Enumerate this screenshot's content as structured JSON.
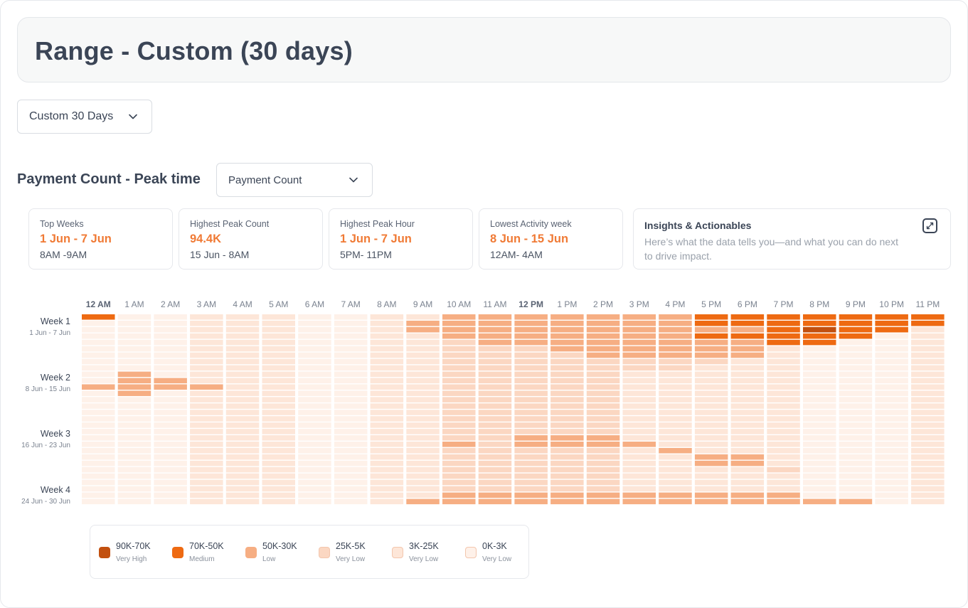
{
  "header": {
    "title": "Range - Custom (30 days)"
  },
  "range_dropdown": {
    "value": "Custom 30 Days",
    "icon": "chevron-down-icon"
  },
  "section": {
    "title": "Payment Count - Peak time"
  },
  "metric_dropdown": {
    "value": "Payment Count",
    "icon": "chevron-down-icon"
  },
  "stats": [
    {
      "label": "Top Weeks",
      "value": "1 Jun - 7 Jun",
      "sub": "8AM -9AM"
    },
    {
      "label": "Highest Peak Count",
      "value": "94.4K",
      "sub": "15 Jun - 8AM"
    },
    {
      "label": "Highest Peak Hour",
      "value": "1 Jun - 7 Jun",
      "sub": "5PM- 11PM"
    },
    {
      "label": "Lowest Activity week",
      "value": "8 Jun - 15 Jun",
      "sub": "12AM- 4AM"
    }
  ],
  "insights": {
    "title": "Insights & Actionables",
    "description": "Here’s what the data tells you—and what you can do next to drive impact.",
    "icon": "expand-icon"
  },
  "chart_data": {
    "type": "heatmap",
    "columns": [
      "12 AM",
      "1 AM",
      "2 AM",
      "3 AM",
      "4 AM",
      "5 AM",
      "6 AM",
      "7 AM",
      "8 AM",
      "9 AM",
      "10 AM",
      "11 AM",
      "12 PM",
      "1 PM",
      "2 PM",
      "3 PM",
      "4 PM",
      "5 PM",
      "6 PM",
      "7 PM",
      "8 PM",
      "9 PM",
      "10 PM",
      "11 PM"
    ],
    "bold_columns": [
      "12 AM",
      "12 PM"
    ],
    "rows": [
      {
        "name": "Week 1",
        "range": "1 Jun - 7 Jun"
      },
      {
        "name": "Week 2",
        "range": "8 Jun - 15 Jun"
      },
      {
        "name": "Week 3",
        "range": "16 Jun - 23 Jun"
      },
      {
        "name": "Week 4",
        "range": "24 Jun - 30 Jun"
      }
    ],
    "slices_per_column": 30,
    "levels_legend": [
      {
        "range": "90K-70K",
        "level": "Very High",
        "color": "#c2500f"
      },
      {
        "range": "70K-50K",
        "level": "Medium",
        "color": "#ee6a12"
      },
      {
        "range": "50K-30K",
        "level": "Low",
        "color": "#f6ae83"
      },
      {
        "range": "25K-5K",
        "level": "Very Low",
        "color": "#fbd7c2"
      },
      {
        "range": "3K-25K",
        "level": "Very Low",
        "color": "#fde6d8"
      },
      {
        "range": "0K-3K",
        "level": "Very Low",
        "color": "#fef1e9"
      }
    ],
    "base_level_per_column": [
      5,
      5,
      5,
      4,
      4,
      4,
      5,
      5,
      4,
      4,
      3,
      3,
      3,
      3,
      3,
      4,
      4,
      4,
      4,
      4,
      5,
      5,
      5,
      4
    ],
    "cell_overrides": [
      [
        0,
        0,
        1
      ],
      [
        0,
        10,
        2
      ],
      [
        0,
        11,
        2
      ],
      [
        0,
        12,
        2
      ],
      [
        0,
        13,
        2
      ],
      [
        0,
        14,
        2
      ],
      [
        0,
        15,
        2
      ],
      [
        0,
        16,
        2
      ],
      [
        0,
        17,
        1
      ],
      [
        0,
        18,
        1
      ],
      [
        0,
        19,
        1
      ],
      [
        0,
        20,
        1
      ],
      [
        0,
        21,
        1
      ],
      [
        0,
        22,
        1
      ],
      [
        0,
        23,
        1
      ],
      [
        1,
        9,
        2
      ],
      [
        1,
        10,
        2
      ],
      [
        1,
        11,
        2
      ],
      [
        1,
        12,
        2
      ],
      [
        1,
        13,
        2
      ],
      [
        1,
        14,
        2
      ],
      [
        1,
        15,
        2
      ],
      [
        1,
        16,
        2
      ],
      [
        1,
        17,
        1
      ],
      [
        1,
        18,
        1
      ],
      [
        1,
        19,
        1
      ],
      [
        1,
        20,
        1
      ],
      [
        1,
        21,
        1
      ],
      [
        1,
        22,
        1
      ],
      [
        1,
        23,
        1
      ],
      [
        2,
        9,
        2
      ],
      [
        2,
        10,
        2
      ],
      [
        2,
        11,
        2
      ],
      [
        2,
        12,
        2
      ],
      [
        2,
        13,
        2
      ],
      [
        2,
        14,
        2
      ],
      [
        2,
        15,
        2
      ],
      [
        2,
        16,
        2
      ],
      [
        2,
        17,
        2
      ],
      [
        2,
        18,
        2
      ],
      [
        2,
        19,
        1
      ],
      [
        2,
        20,
        0
      ],
      [
        2,
        21,
        1
      ],
      [
        2,
        22,
        1
      ],
      [
        3,
        10,
        2
      ],
      [
        3,
        11,
        2
      ],
      [
        3,
        12,
        2
      ],
      [
        3,
        13,
        2
      ],
      [
        3,
        14,
        2
      ],
      [
        3,
        15,
        2
      ],
      [
        3,
        16,
        2
      ],
      [
        3,
        17,
        1
      ],
      [
        3,
        18,
        1
      ],
      [
        3,
        19,
        1
      ],
      [
        3,
        20,
        1
      ],
      [
        3,
        21,
        1
      ],
      [
        4,
        11,
        2
      ],
      [
        4,
        12,
        2
      ],
      [
        4,
        13,
        2
      ],
      [
        4,
        14,
        2
      ],
      [
        4,
        15,
        2
      ],
      [
        4,
        16,
        2
      ],
      [
        4,
        17,
        2
      ],
      [
        4,
        18,
        2
      ],
      [
        4,
        19,
        1
      ],
      [
        4,
        20,
        1
      ],
      [
        5,
        13,
        2
      ],
      [
        5,
        14,
        2
      ],
      [
        5,
        15,
        2
      ],
      [
        5,
        16,
        2
      ],
      [
        5,
        17,
        2
      ],
      [
        5,
        18,
        2
      ],
      [
        6,
        14,
        2
      ],
      [
        6,
        15,
        2
      ],
      [
        6,
        16,
        2
      ],
      [
        6,
        17,
        2
      ],
      [
        6,
        18,
        2
      ],
      [
        7,
        14,
        3
      ],
      [
        7,
        15,
        3
      ],
      [
        7,
        16,
        3
      ],
      [
        7,
        17,
        3
      ],
      [
        8,
        14,
        3
      ],
      [
        8,
        15,
        3
      ],
      [
        8,
        16,
        3
      ],
      [
        9,
        1,
        2
      ],
      [
        10,
        1,
        2
      ],
      [
        10,
        2,
        2
      ],
      [
        11,
        0,
        2
      ],
      [
        11,
        1,
        2
      ],
      [
        11,
        2,
        2
      ],
      [
        11,
        3,
        2
      ],
      [
        12,
        1,
        2
      ],
      [
        19,
        12,
        2
      ],
      [
        19,
        13,
        2
      ],
      [
        19,
        14,
        2
      ],
      [
        20,
        10,
        2
      ],
      [
        20,
        12,
        2
      ],
      [
        20,
        13,
        2
      ],
      [
        20,
        14,
        2
      ],
      [
        20,
        15,
        2
      ],
      [
        21,
        16,
        2
      ],
      [
        22,
        17,
        2
      ],
      [
        22,
        18,
        2
      ],
      [
        23,
        17,
        2
      ],
      [
        23,
        18,
        2
      ],
      [
        24,
        19,
        3
      ],
      [
        27,
        12,
        3
      ],
      [
        27,
        13,
        3
      ],
      [
        28,
        10,
        2
      ],
      [
        28,
        11,
        2
      ],
      [
        28,
        12,
        2
      ],
      [
        28,
        13,
        2
      ],
      [
        28,
        14,
        2
      ],
      [
        28,
        15,
        2
      ],
      [
        28,
        16,
        2
      ],
      [
        28,
        17,
        2
      ],
      [
        28,
        18,
        2
      ],
      [
        28,
        19,
        2
      ],
      [
        29,
        9,
        2
      ],
      [
        29,
        10,
        2
      ],
      [
        29,
        11,
        2
      ],
      [
        29,
        12,
        2
      ],
      [
        29,
        13,
        2
      ],
      [
        29,
        14,
        2
      ],
      [
        29,
        15,
        2
      ],
      [
        29,
        16,
        2
      ],
      [
        29,
        17,
        2
      ],
      [
        29,
        18,
        2
      ],
      [
        29,
        19,
        2
      ],
      [
        29,
        20,
        2
      ],
      [
        29,
        21,
        2
      ],
      [
        30,
        8,
        2
      ],
      [
        30,
        9,
        2
      ],
      [
        30,
        10,
        2
      ],
      [
        30,
        11,
        2
      ],
      [
        30,
        12,
        2
      ],
      [
        30,
        13,
        2
      ],
      [
        30,
        14,
        2
      ],
      [
        30,
        15,
        2
      ],
      [
        30,
        16,
        2
      ],
      [
        30,
        17,
        2
      ],
      [
        30,
        18,
        2
      ],
      [
        30,
        19,
        2
      ],
      [
        30,
        20,
        2
      ],
      [
        30,
        21,
        2
      ],
      [
        30,
        22,
        2
      ]
    ]
  }
}
